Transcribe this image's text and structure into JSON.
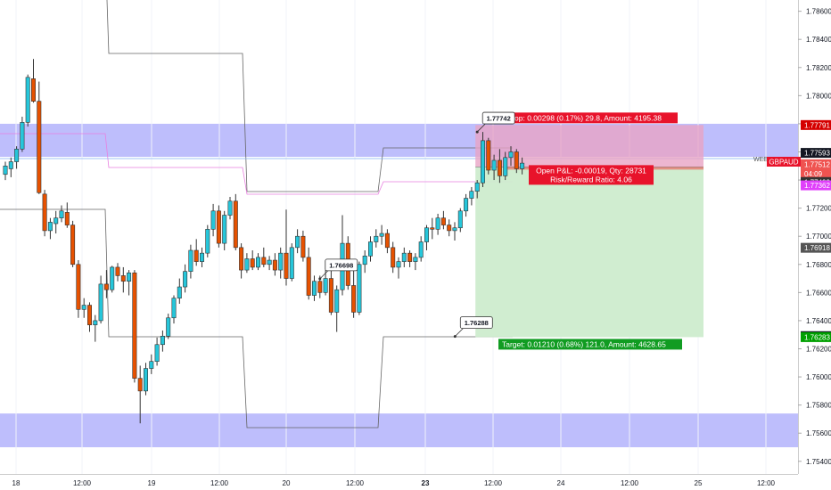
{
  "chart_data": {
    "type": "candlestick",
    "symbol": "GBPAUD",
    "symbol_overlay_label": "WEEKLY",
    "ylim": [
      1.7531,
      1.7868
    ],
    "y_ticks": [
      "1.78600",
      "1.78400",
      "1.78200",
      "1.78000",
      "1.77800",
      "1.77600",
      "1.77400",
      "1.77200",
      "1.77000",
      "1.76800",
      "1.76600",
      "1.76400",
      "1.76200",
      "1.76000",
      "1.75800",
      "1.75600",
      "1.75400"
    ],
    "x_ticks": [
      "18",
      "12:00",
      "19",
      "12:00",
      "20",
      "12:00",
      "23",
      "12:00",
      "24",
      "12:00",
      "25",
      "12:00"
    ],
    "bold_x_ticks": [
      "23"
    ],
    "candles": [
      {
        "o": 1.7744,
        "h": 1.7753,
        "l": 1.774,
        "c": 1.775
      },
      {
        "o": 1.7748,
        "h": 1.7756,
        "l": 1.7742,
        "c": 1.7753
      },
      {
        "o": 1.7753,
        "h": 1.7764,
        "l": 1.7748,
        "c": 1.7762
      },
      {
        "o": 1.7762,
        "h": 1.7785,
        "l": 1.776,
        "c": 1.7781
      },
      {
        "o": 1.7781,
        "h": 1.7815,
        "l": 1.7778,
        "c": 1.7813
      },
      {
        "o": 1.7812,
        "h": 1.7826,
        "l": 1.7795,
        "c": 1.7796
      },
      {
        "o": 1.7796,
        "h": 1.781,
        "l": 1.773,
        "c": 1.7731
      },
      {
        "o": 1.773,
        "h": 1.7733,
        "l": 1.77,
        "c": 1.7704
      },
      {
        "o": 1.7704,
        "h": 1.7713,
        "l": 1.7698,
        "c": 1.771
      },
      {
        "o": 1.7709,
        "h": 1.7718,
        "l": 1.7702,
        "c": 1.7713
      },
      {
        "o": 1.7713,
        "h": 1.7722,
        "l": 1.771,
        "c": 1.7718
      },
      {
        "o": 1.7717,
        "h": 1.7724,
        "l": 1.7706,
        "c": 1.7708
      },
      {
        "o": 1.7708,
        "h": 1.7711,
        "l": 1.7678,
        "c": 1.768
      },
      {
        "o": 1.768,
        "h": 1.7683,
        "l": 1.7642,
        "c": 1.7648
      },
      {
        "o": 1.7648,
        "h": 1.7656,
        "l": 1.7642,
        "c": 1.7651
      },
      {
        "o": 1.7651,
        "h": 1.7653,
        "l": 1.7632,
        "c": 1.7637
      },
      {
        "o": 1.7637,
        "h": 1.7644,
        "l": 1.7625,
        "c": 1.764
      },
      {
        "o": 1.764,
        "h": 1.7672,
        "l": 1.7638,
        "c": 1.7666
      },
      {
        "o": 1.7666,
        "h": 1.7676,
        "l": 1.7656,
        "c": 1.7662
      },
      {
        "o": 1.7662,
        "h": 1.7679,
        "l": 1.766,
        "c": 1.7678
      },
      {
        "o": 1.7678,
        "h": 1.7681,
        "l": 1.7668,
        "c": 1.7672
      },
      {
        "o": 1.7672,
        "h": 1.7678,
        "l": 1.766,
        "c": 1.7668
      },
      {
        "o": 1.7668,
        "h": 1.7676,
        "l": 1.7658,
        "c": 1.7674
      },
      {
        "o": 1.7674,
        "h": 1.7676,
        "l": 1.7596,
        "c": 1.7599
      },
      {
        "o": 1.7599,
        "h": 1.7608,
        "l": 1.7567,
        "c": 1.759
      },
      {
        "o": 1.759,
        "h": 1.761,
        "l": 1.7587,
        "c": 1.7606
      },
      {
        "o": 1.7606,
        "h": 1.7616,
        "l": 1.7602,
        "c": 1.7611
      },
      {
        "o": 1.7611,
        "h": 1.7628,
        "l": 1.7608,
        "c": 1.7623
      },
      {
        "o": 1.7623,
        "h": 1.7633,
        "l": 1.7618,
        "c": 1.7629
      },
      {
        "o": 1.7629,
        "h": 1.7645,
        "l": 1.7627,
        "c": 1.7642
      },
      {
        "o": 1.7642,
        "h": 1.7658,
        "l": 1.7638,
        "c": 1.7656
      },
      {
        "o": 1.7656,
        "h": 1.767,
        "l": 1.7652,
        "c": 1.7664
      },
      {
        "o": 1.7664,
        "h": 1.768,
        "l": 1.766,
        "c": 1.7675
      },
      {
        "o": 1.7675,
        "h": 1.7694,
        "l": 1.767,
        "c": 1.769
      },
      {
        "o": 1.769,
        "h": 1.7698,
        "l": 1.7679,
        "c": 1.7682
      },
      {
        "o": 1.7682,
        "h": 1.7692,
        "l": 1.7678,
        "c": 1.7688
      },
      {
        "o": 1.7688,
        "h": 1.7708,
        "l": 1.7685,
        "c": 1.7705
      },
      {
        "o": 1.7705,
        "h": 1.7723,
        "l": 1.77,
        "c": 1.7718
      },
      {
        "o": 1.7718,
        "h": 1.7722,
        "l": 1.7692,
        "c": 1.7695
      },
      {
        "o": 1.7695,
        "h": 1.7718,
        "l": 1.769,
        "c": 1.7715
      },
      {
        "o": 1.7715,
        "h": 1.7728,
        "l": 1.7712,
        "c": 1.7725
      },
      {
        "o": 1.7725,
        "h": 1.773,
        "l": 1.769,
        "c": 1.7692
      },
      {
        "o": 1.7692,
        "h": 1.7695,
        "l": 1.767,
        "c": 1.7676
      },
      {
        "o": 1.7676,
        "h": 1.7688,
        "l": 1.7674,
        "c": 1.7684
      },
      {
        "o": 1.7684,
        "h": 1.769,
        "l": 1.7676,
        "c": 1.7678
      },
      {
        "o": 1.7678,
        "h": 1.7688,
        "l": 1.7676,
        "c": 1.7685
      },
      {
        "o": 1.7685,
        "h": 1.7692,
        "l": 1.7678,
        "c": 1.768
      },
      {
        "o": 1.768,
        "h": 1.7686,
        "l": 1.7676,
        "c": 1.7683
      },
      {
        "o": 1.7683,
        "h": 1.7688,
        "l": 1.7672,
        "c": 1.7676
      },
      {
        "o": 1.7676,
        "h": 1.7692,
        "l": 1.767,
        "c": 1.7688
      },
      {
        "o": 1.7688,
        "h": 1.7719,
        "l": 1.7665,
        "c": 1.767
      },
      {
        "o": 1.767,
        "h": 1.7695,
        "l": 1.7668,
        "c": 1.7692
      },
      {
        "o": 1.7692,
        "h": 1.7705,
        "l": 1.7688,
        "c": 1.77
      },
      {
        "o": 1.77,
        "h": 1.7704,
        "l": 1.7682,
        "c": 1.7685
      },
      {
        "o": 1.7685,
        "h": 1.7692,
        "l": 1.7655,
        "c": 1.7658
      },
      {
        "o": 1.7658,
        "h": 1.7672,
        "l": 1.7654,
        "c": 1.7668
      },
      {
        "o": 1.7668,
        "h": 1.7672,
        "l": 1.7656,
        "c": 1.766
      },
      {
        "o": 1.766,
        "h": 1.7678,
        "l": 1.7658,
        "c": 1.767
      },
      {
        "o": 1.767,
        "h": 1.7676,
        "l": 1.7644,
        "c": 1.7646
      },
      {
        "o": 1.7646,
        "h": 1.7665,
        "l": 1.7632,
        "c": 1.7662
      },
      {
        "o": 1.7662,
        "h": 1.7715,
        "l": 1.7658,
        "c": 1.7695
      },
      {
        "o": 1.7695,
        "h": 1.77,
        "l": 1.7662,
        "c": 1.7665
      },
      {
        "o": 1.7665,
        "h": 1.768,
        "l": 1.7642,
        "c": 1.7646
      },
      {
        "o": 1.7646,
        "h": 1.7682,
        "l": 1.7644,
        "c": 1.768
      },
      {
        "o": 1.768,
        "h": 1.769,
        "l": 1.7674,
        "c": 1.7686
      },
      {
        "o": 1.7686,
        "h": 1.77,
        "l": 1.7682,
        "c": 1.7696
      },
      {
        "o": 1.7696,
        "h": 1.7705,
        "l": 1.7692,
        "c": 1.77
      },
      {
        "o": 1.77,
        "h": 1.7708,
        "l": 1.7694,
        "c": 1.7702
      },
      {
        "o": 1.7702,
        "h": 1.7705,
        "l": 1.7688,
        "c": 1.7692
      },
      {
        "o": 1.7692,
        "h": 1.7696,
        "l": 1.7674,
        "c": 1.7678
      },
      {
        "o": 1.7678,
        "h": 1.7685,
        "l": 1.767,
        "c": 1.7682
      },
      {
        "o": 1.7682,
        "h": 1.7692,
        "l": 1.7678,
        "c": 1.7688
      },
      {
        "o": 1.7688,
        "h": 1.769,
        "l": 1.7678,
        "c": 1.7682
      },
      {
        "o": 1.7682,
        "h": 1.7688,
        "l": 1.7676,
        "c": 1.7685
      },
      {
        "o": 1.7685,
        "h": 1.77,
        "l": 1.7682,
        "c": 1.7696
      },
      {
        "o": 1.7696,
        "h": 1.7708,
        "l": 1.769,
        "c": 1.7706
      },
      {
        "o": 1.7706,
        "h": 1.7713,
        "l": 1.7698,
        "c": 1.7705
      },
      {
        "o": 1.7705,
        "h": 1.7716,
        "l": 1.7701,
        "c": 1.7713
      },
      {
        "o": 1.7713,
        "h": 1.7718,
        "l": 1.7705,
        "c": 1.7708
      },
      {
        "o": 1.7708,
        "h": 1.7712,
        "l": 1.77,
        "c": 1.7704
      },
      {
        "o": 1.7704,
        "h": 1.771,
        "l": 1.7697,
        "c": 1.7706
      },
      {
        "o": 1.7706,
        "h": 1.772,
        "l": 1.7703,
        "c": 1.7718
      },
      {
        "o": 1.7718,
        "h": 1.773,
        "l": 1.7714,
        "c": 1.7727
      },
      {
        "o": 1.7727,
        "h": 1.7735,
        "l": 1.7722,
        "c": 1.7732
      },
      {
        "o": 1.7732,
        "h": 1.774,
        "l": 1.7727,
        "c": 1.7738
      },
      {
        "o": 1.7738,
        "h": 1.77742,
        "l": 1.7735,
        "c": 1.7768
      },
      {
        "o": 1.7768,
        "h": 1.777,
        "l": 1.7744,
        "c": 1.7747
      },
      {
        "o": 1.7747,
        "h": 1.7758,
        "l": 1.774,
        "c": 1.7754
      },
      {
        "o": 1.7754,
        "h": 1.7762,
        "l": 1.7738,
        "c": 1.7743
      },
      {
        "o": 1.7743,
        "h": 1.776,
        "l": 1.774,
        "c": 1.7756
      },
      {
        "o": 1.7756,
        "h": 1.7764,
        "l": 1.775,
        "c": 1.776
      },
      {
        "o": 1.776,
        "h": 1.7762,
        "l": 1.7745,
        "c": 1.7748
      },
      {
        "o": 1.7748,
        "h": 1.7756,
        "l": 1.7744,
        "c": 1.7752
      }
    ],
    "zones": [
      {
        "name": "upper-zone",
        "from": 1.77565,
        "to": 1.778
      },
      {
        "name": "lower-zone",
        "from": 1.755,
        "to": 1.7574
      }
    ],
    "position": {
      "entry": 1.77493,
      "stop": 1.77791,
      "target": 1.76283,
      "entry_start_candle": 84,
      "end_x_label": "25",
      "stop_label": "Stop: 0.00298 (0.17%) 29.8, Amount: 4195.38",
      "target_label": "Target: 0.01210 (0.68%) 121.0, Amount: 4628.65",
      "pnl_label": "Open P&L: -0.00019, Qty: 28731",
      "rr_label": "Risk/Reward Ratio: 4.06"
    },
    "annotations": [
      {
        "text": "1.77742",
        "candle": 84,
        "price": 1.77742
      },
      {
        "text": "1.76698",
        "candle": 56,
        "price": 1.76698
      },
      {
        "text": "1.76288",
        "candle": 81,
        "price": 1.76288
      }
    ],
    "price_badges": [
      {
        "text": "1.77791",
        "price": 1.77791,
        "bg": "#d50000",
        "fg": "#ffffff"
      },
      {
        "text": "1.77593",
        "price": 1.77593,
        "bg": "#131722",
        "fg": "#ffffff"
      },
      {
        "text": "1.77512",
        "price": 1.77512,
        "bg": "#ef5350",
        "fg": "#ffffff"
      },
      {
        "text": "04:09",
        "price": 1.77444,
        "bg": "#ef5350",
        "fg": "#ffffff"
      },
      {
        "text": "1.77493",
        "price": 1.77386,
        "bg": "#333333",
        "fg": "#ffffff"
      },
      {
        "text": "1.77362",
        "price": 1.77362,
        "bg": "#e040fb",
        "fg": "#ffffff"
      },
      {
        "text": "1.76918",
        "price": 1.76918,
        "bg": "#555555",
        "fg": "#ffffff"
      },
      {
        "text": "1.76290",
        "price": 1.7629,
        "bg": "#131722",
        "fg": "#ffffff"
      },
      {
        "text": "1.76283",
        "price": 1.76283,
        "bg": "#00a000",
        "fg": "#ffffff"
      }
    ],
    "colors": {
      "up": "#26c6da",
      "down": "#e65100",
      "wick": "#333333",
      "zone": "#b3b3fb",
      "stop_zone": "#e8a4c4",
      "target_zone": "#cdeccd",
      "stop_label_bg": "#e8132b",
      "target_label_bg": "#119c22"
    }
  }
}
